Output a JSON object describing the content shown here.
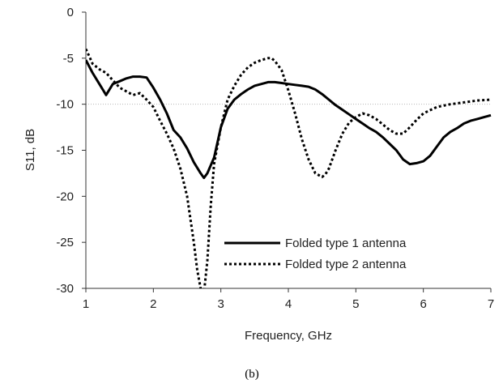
{
  "chart_data": {
    "type": "line",
    "title": "",
    "xlabel": "Frequency,  GHz",
    "ylabel": "S11, dB",
    "xlim": [
      1,
      7
    ],
    "ylim": [
      -30,
      0
    ],
    "x_ticks": [
      1,
      2,
      3,
      4,
      5,
      6,
      7
    ],
    "y_ticks": [
      0,
      -5,
      -10,
      -15,
      -20,
      -25,
      -30
    ],
    "x_tick_labels": [
      "1",
      "2",
      "3",
      "4",
      "5",
      "6",
      "7"
    ],
    "y_tick_labels": [
      "0",
      "-5",
      "-10",
      "-15",
      "-20",
      "-25",
      "-30"
    ],
    "reference_line": {
      "y": -10,
      "style": "dotted"
    },
    "legend_position": "lower-center",
    "caption": "(b)",
    "series": [
      {
        "name": "Folded type 1 antenna",
        "style": "solid",
        "color": "#000000",
        "x": [
          1.0,
          1.1,
          1.2,
          1.3,
          1.4,
          1.5,
          1.6,
          1.7,
          1.8,
          1.9,
          2.0,
          2.1,
          2.2,
          2.3,
          2.4,
          2.5,
          2.6,
          2.7,
          2.75,
          2.8,
          2.9,
          3.0,
          3.1,
          3.2,
          3.3,
          3.4,
          3.5,
          3.6,
          3.7,
          3.8,
          3.9,
          4.0,
          4.1,
          4.2,
          4.3,
          4.4,
          4.5,
          4.6,
          4.7,
          4.8,
          4.9,
          5.0,
          5.1,
          5.2,
          5.3,
          5.4,
          5.5,
          5.6,
          5.7,
          5.8,
          5.9,
          6.0,
          6.1,
          6.2,
          6.3,
          6.4,
          6.5,
          6.6,
          6.7,
          6.8,
          6.9,
          7.0
        ],
        "y": [
          -5.2,
          -6.6,
          -7.8,
          -9.0,
          -7.8,
          -7.5,
          -7.2,
          -7.0,
          -7.0,
          -7.1,
          -8.2,
          -9.5,
          -11.0,
          -12.8,
          -13.6,
          -14.8,
          -16.3,
          -17.5,
          -18.0,
          -17.5,
          -15.8,
          -12.5,
          -10.5,
          -9.5,
          -8.9,
          -8.4,
          -8.0,
          -7.8,
          -7.6,
          -7.6,
          -7.7,
          -7.8,
          -7.9,
          -8.0,
          -8.1,
          -8.4,
          -8.9,
          -9.5,
          -10.1,
          -10.6,
          -11.1,
          -11.6,
          -12.1,
          -12.6,
          -13.0,
          -13.6,
          -14.3,
          -15.0,
          -16.0,
          -16.5,
          -16.4,
          -16.2,
          -15.6,
          -14.6,
          -13.6,
          -13.0,
          -12.6,
          -12.1,
          -11.8,
          -11.6,
          -11.4,
          -11.2
        ]
      },
      {
        "name": "Folded type 2 antenna",
        "style": "dotted",
        "color": "#000000",
        "x": [
          1.0,
          1.05,
          1.1,
          1.2,
          1.3,
          1.4,
          1.5,
          1.6,
          1.7,
          1.8,
          1.9,
          2.0,
          2.1,
          2.2,
          2.3,
          2.4,
          2.5,
          2.6,
          2.65,
          2.7,
          2.75,
          2.8,
          2.85,
          2.9,
          3.0,
          3.1,
          3.2,
          3.3,
          3.4,
          3.5,
          3.6,
          3.7,
          3.75,
          3.8,
          3.9,
          4.0,
          4.1,
          4.2,
          4.3,
          4.4,
          4.5,
          4.55,
          4.6,
          4.7,
          4.8,
          4.9,
          5.0,
          5.1,
          5.2,
          5.3,
          5.4,
          5.5,
          5.6,
          5.7,
          5.8,
          5.9,
          6.0,
          6.2,
          6.4,
          6.6,
          6.8,
          7.0
        ],
        "y": [
          -4.0,
          -4.8,
          -5.6,
          -6.2,
          -6.6,
          -7.4,
          -8.2,
          -8.6,
          -9.0,
          -8.8,
          -9.5,
          -10.3,
          -11.8,
          -13.2,
          -14.8,
          -17.0,
          -20.0,
          -25.0,
          -28.0,
          -30.0,
          -30.5,
          -27.0,
          -21.0,
          -16.5,
          -12.5,
          -9.5,
          -8.0,
          -6.8,
          -6.0,
          -5.5,
          -5.2,
          -5.0,
          -5.0,
          -5.3,
          -6.3,
          -8.5,
          -11.0,
          -13.8,
          -16.0,
          -17.5,
          -17.9,
          -17.6,
          -17.0,
          -15.0,
          -13.2,
          -12.0,
          -11.4,
          -11.0,
          -11.2,
          -11.6,
          -12.2,
          -12.8,
          -13.2,
          -13.2,
          -12.5,
          -11.7,
          -11.0,
          -10.3,
          -10.0,
          -9.8,
          -9.6,
          -9.5
        ]
      }
    ]
  }
}
